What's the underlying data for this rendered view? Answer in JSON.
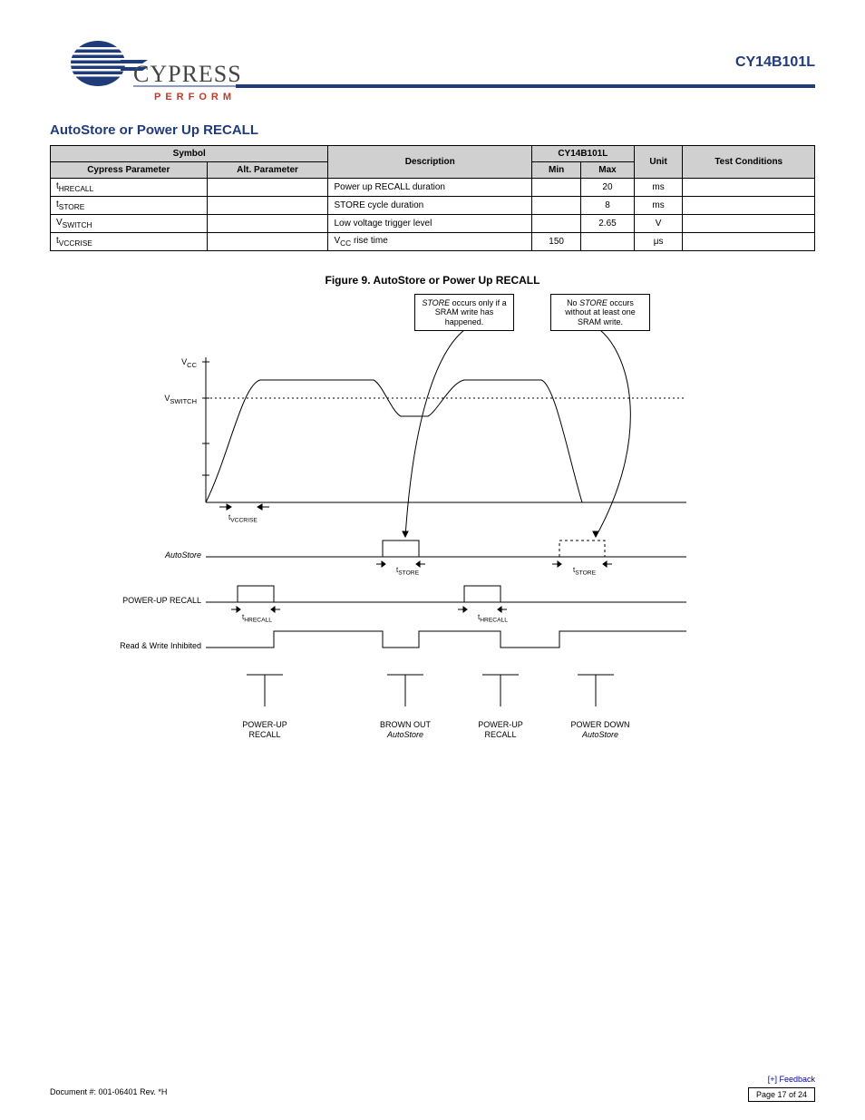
{
  "header": {
    "part_number": "CY14B101L",
    "logo": {
      "brand_top": "CYPRESS",
      "brand_bottom": "PERFORM",
      "blue": "#1f3b7a",
      "red": "#c0392b"
    },
    "rule_color": "#1f3b7a"
  },
  "section_title": "AutoStore or Power Up RECALL",
  "table": {
    "headers": {
      "symbol": "Symbol",
      "cypress": "Cypress Parameter",
      "alt": "Alt. Parameter",
      "description": "Description",
      "range": "CY14B101L",
      "min": "Min",
      "max": "Max",
      "unit": "Unit",
      "test": "Test Conditions"
    },
    "rows": [
      {
        "cypress": "t<sub>HRECALL</sub>",
        "alt": "",
        "description": "Power up RECALL duration",
        "min": "",
        "max": "20",
        "unit": "ms",
        "test": ""
      },
      {
        "cypress": "t<sub>STORE</sub>",
        "alt": "",
        "description": "STORE cycle duration",
        "min": "",
        "max": "8",
        "unit": "ms",
        "test": ""
      },
      {
        "cypress": "V<sub>SWITCH</sub>",
        "alt": "",
        "description": "Low voltage trigger level",
        "min": "",
        "max": "2.65",
        "unit": "V",
        "test": ""
      },
      {
        "cypress": "t<sub>VCCRISE</sub>",
        "alt": "",
        "description": "V<sub>CC</sub> rise time",
        "min": "150",
        "max": "",
        "unit": "μs",
        "test": ""
      }
    ]
  },
  "figure": {
    "number": "9",
    "title": "AutoStore or Power Up RECALL",
    "callout_a": "STORE occurs only if a SRAM write has happened.",
    "callout_b": "No STORE occurs without at least one SRAM write.",
    "y_labels": {
      "vcc": "V<sub>CC</sub>",
      "vswitch": "V<sub>SWITCH</sub>",
      "autostore": "AutoStore",
      "powerup_recall": "POWER-UP RECALL",
      "rw_inhibit": "Read & Write Inhibited"
    },
    "timing_labels": {
      "tvccrise": "t<sub>VCCRISE</sub>",
      "tstore": "t<sub>STORE</sub>",
      "threcall": "t<sub>HRECALL</sub>"
    },
    "bottom_labels": {
      "a": "POWER-UP\nRECALL",
      "b": "BROWN OUT\nAutoStore",
      "c": "POWER-UP\nRECALL",
      "d": "POWER DOWN\nAutoStore"
    },
    "colors": {
      "stroke": "#000000",
      "bg": "#ffffff"
    }
  },
  "footer": {
    "doc": "Document #: 001-06401 Rev. *H",
    "page": "Page 17 of 24",
    "link": "[+] Feedback"
  }
}
